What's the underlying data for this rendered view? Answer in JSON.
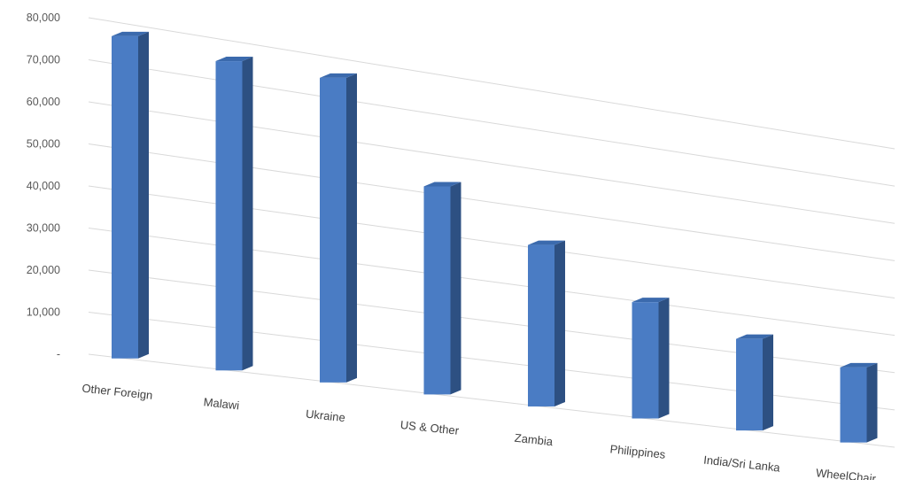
{
  "chart_data": {
    "type": "bar",
    "style": "3d-column",
    "categories": [
      "Other Foreign",
      "Malawi",
      "Ukraine",
      "US & Other",
      "Zambia",
      "Philippines",
      "India/Sri Lanka",
      "WheelChair"
    ],
    "values": [
      77000,
      75000,
      75000,
      52000,
      41000,
      30000,
      24000,
      20000
    ],
    "ylim": [
      0,
      80000
    ],
    "y_ticks": [
      0,
      10000,
      20000,
      30000,
      40000,
      50000,
      60000,
      70000,
      80000
    ],
    "y_tick_labels": [
      "-",
      "10,000",
      "20,000",
      "30,000",
      "40,000",
      "50,000",
      "60,000",
      "70,000",
      "80,000"
    ],
    "title": "",
    "xlabel": "",
    "ylabel": "",
    "grid": true,
    "legend": "none",
    "colors": {
      "front": "#4a7cc4",
      "side": "#2d5082",
      "top": "#3b6aad",
      "grid": "#d9d9d9",
      "text": "#595959"
    }
  }
}
